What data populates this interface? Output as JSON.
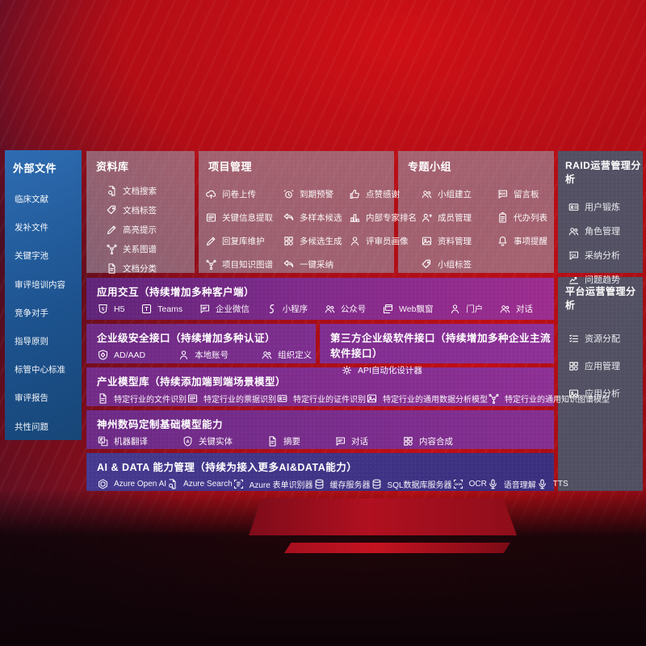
{
  "colors": {
    "sidebar_blue": "#1f5c9e",
    "panel_gray": "#8f8aa0",
    "panel_slate": "#4a5669",
    "band_purple": "#8d2f94",
    "band_indigo": "#45398f",
    "background_red": "#b30d16"
  },
  "sidebar": {
    "title": "外部文件",
    "items": [
      {
        "label": "临床文献",
        "icon": "clinical-literature"
      },
      {
        "label": "发补文件",
        "icon": "supplement-files"
      },
      {
        "label": "关键字池",
        "icon": "keyword-pool"
      },
      {
        "label": "审评培训内容",
        "icon": "review-training-content"
      },
      {
        "label": "竞争对手",
        "icon": "competitors"
      },
      {
        "label": "指导原则",
        "icon": "guiding-principles"
      },
      {
        "label": "标管中心标准",
        "icon": "center-standards"
      },
      {
        "label": "审评报告",
        "icon": "review-reports"
      },
      {
        "label": "共性问题",
        "icon": "common-issues"
      }
    ]
  },
  "panels": {
    "library": {
      "title": "资料库",
      "items": [
        {
          "label": "文档搜索",
          "icon": "doc-search"
        },
        {
          "label": "文档标签",
          "icon": "doc-tags"
        },
        {
          "label": "高亮提示",
          "icon": "highlight-tips"
        },
        {
          "label": "关系图谱",
          "icon": "relation-graph"
        },
        {
          "label": "文档分类",
          "icon": "doc-classification"
        }
      ]
    },
    "project": {
      "title": "项目管理",
      "items": [
        {
          "label": "问卷上传",
          "icon": "questionnaire-upload"
        },
        {
          "label": "到期预警",
          "icon": "due-warning"
        },
        {
          "label": "点赞感谢",
          "icon": "like-thanks"
        },
        {
          "label": "关键信息提取",
          "icon": "key-info-extraction"
        },
        {
          "label": "多样本候选",
          "icon": "multi-sample-candidates"
        },
        {
          "label": "内部专家排名",
          "icon": "internal-expert-ranking"
        },
        {
          "label": "回复库维护",
          "icon": "reply-library-maintenance"
        },
        {
          "label": "多候选生成",
          "icon": "multi-candidate-generation"
        },
        {
          "label": "评审员画像",
          "icon": "reviewer-profile"
        },
        {
          "label": "项目知识图谱",
          "icon": "project-knowledge-graph"
        },
        {
          "label": "一键采纳",
          "icon": "one-click-adoption"
        }
      ]
    },
    "groups": {
      "title": "专题小组",
      "items": [
        {
          "label": "小组建立",
          "icon": "group-creation"
        },
        {
          "label": "留言板",
          "icon": "message-board"
        },
        {
          "label": "成员管理",
          "icon": "member-management"
        },
        {
          "label": "代办列表",
          "icon": "todo-list"
        },
        {
          "label": "资料管理",
          "icon": "material-management"
        },
        {
          "label": "事项提醒",
          "icon": "event-reminder"
        },
        {
          "label": "小组标签",
          "icon": "group-tags"
        }
      ]
    },
    "raid": {
      "title": "RAID运营管理分析",
      "items": [
        {
          "label": "用户锻炼",
          "icon": "user-training"
        },
        {
          "label": "角色管理",
          "icon": "role-management"
        },
        {
          "label": "采纳分析",
          "icon": "adoption-analysis"
        },
        {
          "label": "问题趋势",
          "icon": "issue-trends"
        }
      ]
    },
    "platform": {
      "title": "平台运营管理分析",
      "items": [
        {
          "label": "资源分配",
          "icon": "resource-allocation"
        },
        {
          "label": "应用管理",
          "icon": "app-management"
        },
        {
          "label": "应用分析",
          "icon": "app-analysis"
        }
      ]
    }
  },
  "bands": {
    "interaction": {
      "title": "应用交互（持续增加多种客户端）",
      "items": [
        {
          "label": "H5",
          "icon": "h5"
        },
        {
          "label": "Teams",
          "icon": "teams"
        },
        {
          "label": "企业微信",
          "icon": "wechat-work"
        },
        {
          "label": "小程序",
          "icon": "miniprogram"
        },
        {
          "label": "公众号",
          "icon": "official-account"
        },
        {
          "label": "Web飘窗",
          "icon": "web-popup"
        },
        {
          "label": "门户",
          "icon": "portal"
        },
        {
          "label": "对话",
          "icon": "dialog"
        }
      ]
    },
    "security": {
      "title": "企业级安全接口（持续增加多种认证）",
      "items": [
        {
          "label": "AD/AAD",
          "icon": "ad-aad"
        },
        {
          "label": "本地账号",
          "icon": "local-account"
        },
        {
          "label": "组织定义",
          "icon": "org-definition"
        }
      ]
    },
    "thirdparty": {
      "title": "第三方企业级软件接口（持续增加多种企业主流软件接口）",
      "items": [
        {
          "label": "API自动化设计器",
          "icon": "api-designer"
        }
      ]
    },
    "models": {
      "title": "产业模型库（持续添加端到端场景模型）",
      "items": [
        {
          "label": "特定行业的文件识别",
          "icon": "industry-file-recognition"
        },
        {
          "label": "特定行业的票据识别",
          "icon": "industry-receipt-recognition"
        },
        {
          "label": "特定行业的证件识别",
          "icon": "industry-cert-recognition"
        },
        {
          "label": "特定行业的通用数据分析模型",
          "icon": "industry-data-analysis-model"
        },
        {
          "label": "特定行业的通用知识图谱模型",
          "icon": "industry-knowledge-graph-model"
        }
      ]
    },
    "base": {
      "title": "神州数码定制基础模型能力",
      "items": [
        {
          "label": "机器翻译",
          "icon": "machine-translation"
        },
        {
          "label": "关键实体",
          "icon": "key-entities"
        },
        {
          "label": "摘要",
          "icon": "summary"
        },
        {
          "label": "对话",
          "icon": "chat-dialog"
        },
        {
          "label": "内容合成",
          "icon": "content-synthesis"
        }
      ]
    },
    "aidata": {
      "title": "AI & DATA 能力管理（持续为接入更多AI&DATA能力）",
      "items": [
        {
          "label": "Azure Open AI",
          "icon": "azure-openai"
        },
        {
          "label": "Azure Search",
          "icon": "azure-search"
        },
        {
          "label": "Azure 表单识别器",
          "icon": "azure-form-recognizer"
        },
        {
          "label": "缓存服务器",
          "icon": "cache-server"
        },
        {
          "label": "SQL数据库服务器",
          "icon": "sql-database-server"
        },
        {
          "label": "OCR",
          "icon": "ocr"
        },
        {
          "label": "语音理解",
          "icon": "speech-understanding"
        },
        {
          "label": "TTS",
          "icon": "tts"
        }
      ]
    }
  }
}
